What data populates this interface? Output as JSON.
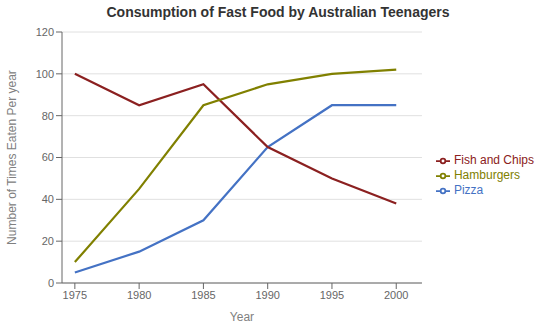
{
  "chart_data": {
    "type": "line",
    "title": "Consumption of Fast Food by Australian Teenagers",
    "xlabel": "Year",
    "ylabel": "Number of Times Eaten Per year",
    "x": [
      1975,
      1980,
      1985,
      1990,
      1995,
      2000
    ],
    "series": [
      {
        "name": "Pizza",
        "color": "#4472C4",
        "values": [
          5,
          15,
          30,
          65,
          85,
          85
        ]
      },
      {
        "name": "Fish and Chips",
        "color": "#8B2020",
        "values": [
          100,
          85,
          95,
          65,
          50,
          38
        ]
      },
      {
        "name": "Hamburgers",
        "color": "#808000",
        "values": [
          10,
          45,
          85,
          95,
          100,
          102
        ]
      }
    ],
    "xlim": [
      1974,
      2002
    ],
    "xticks": [
      1975,
      1980,
      1985,
      1990,
      1995,
      2000
    ],
    "ylim": [
      0,
      120
    ],
    "yticks": [
      0,
      20,
      40,
      60,
      80,
      100,
      120
    ],
    "grid": "y",
    "legend": "right"
  }
}
